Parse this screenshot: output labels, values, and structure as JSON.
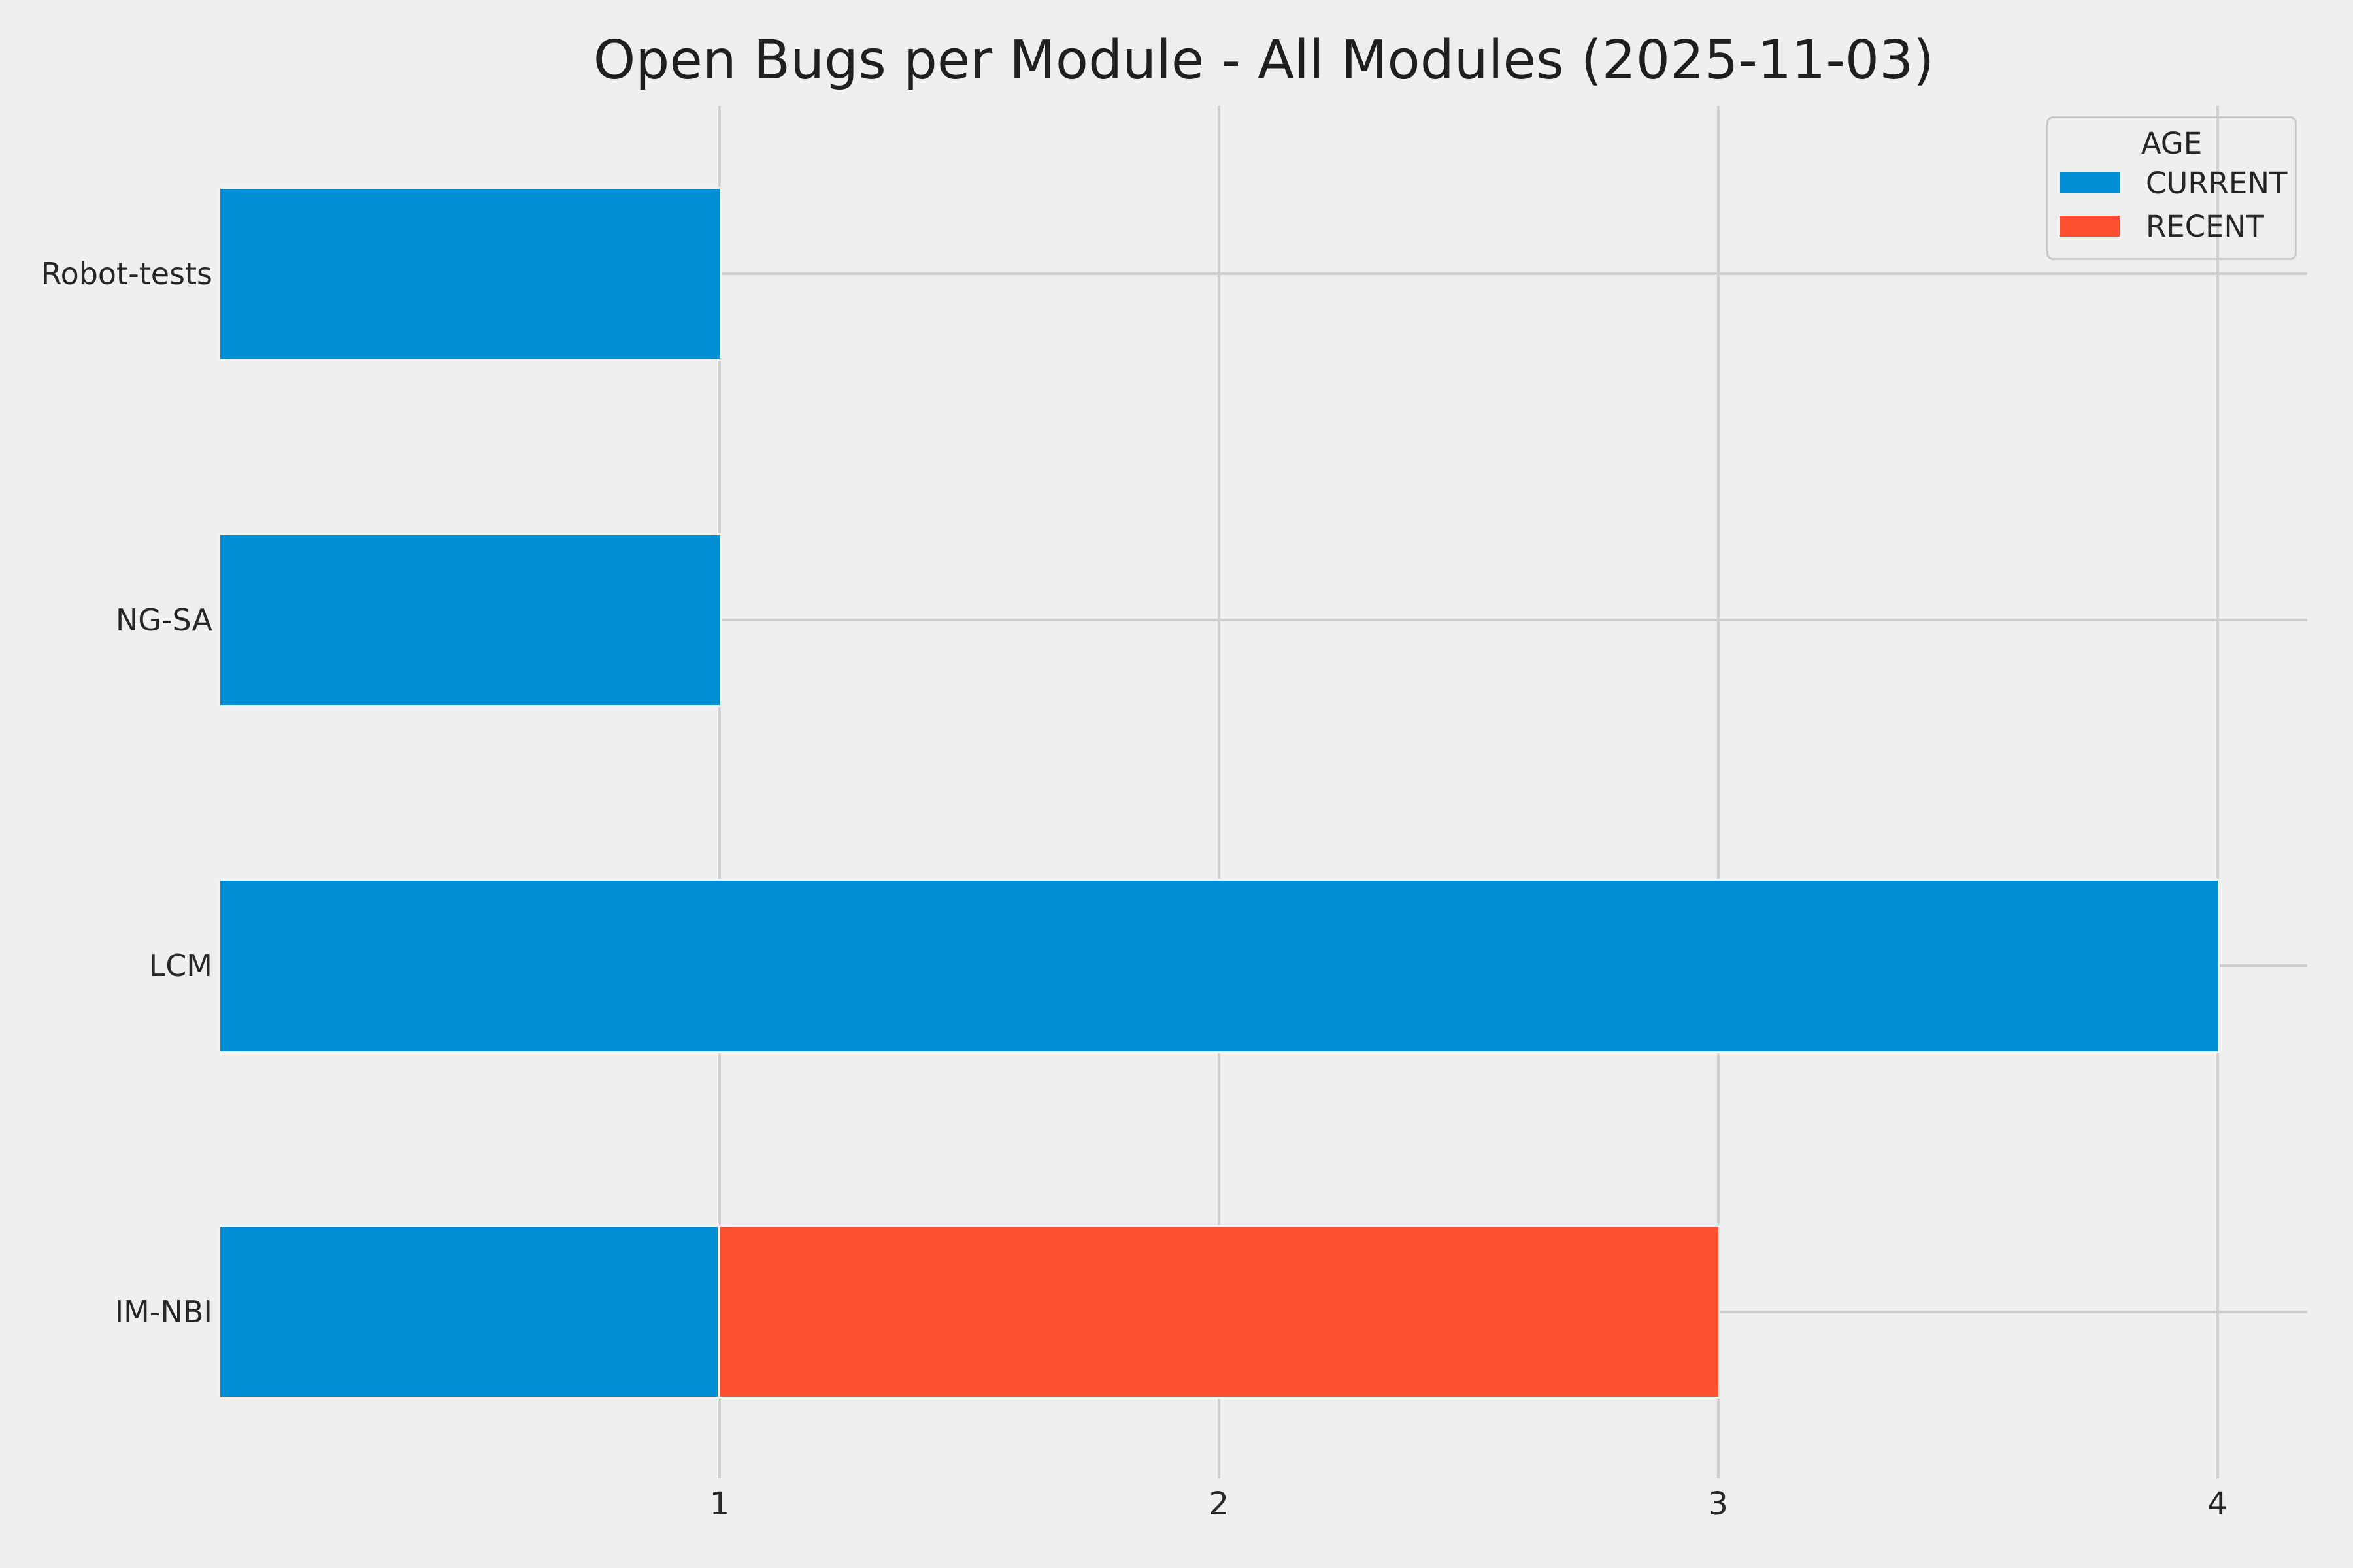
{
  "chart_data": {
    "type": "bar",
    "orientation": "horizontal",
    "stacked": true,
    "title": "Open Bugs per Module - All Modules (2025-11-03)",
    "categories": [
      "Robot-tests",
      "NG-SA",
      "LCM",
      "IM-NBI"
    ],
    "series": [
      {
        "name": "CURRENT",
        "color": "#008fd5",
        "values": [
          1,
          1,
          4,
          1
        ]
      },
      {
        "name": "RECENT",
        "color": "#fc4f30",
        "values": [
          0,
          0,
          0,
          2
        ]
      }
    ],
    "legend": {
      "title": "AGE",
      "position": "upper right",
      "entries": [
        "CURRENT",
        "RECENT"
      ]
    },
    "xlabel": "",
    "ylabel": "",
    "x_ticks": [
      1,
      2,
      3,
      4
    ],
    "xlim": [
      0,
      4.18
    ],
    "grid": true,
    "style": {
      "background_color": "#efefef",
      "grid_color": "#cfcfcf",
      "text_color": "#262626",
      "bar_edge_color": "#f2f2f2"
    }
  }
}
